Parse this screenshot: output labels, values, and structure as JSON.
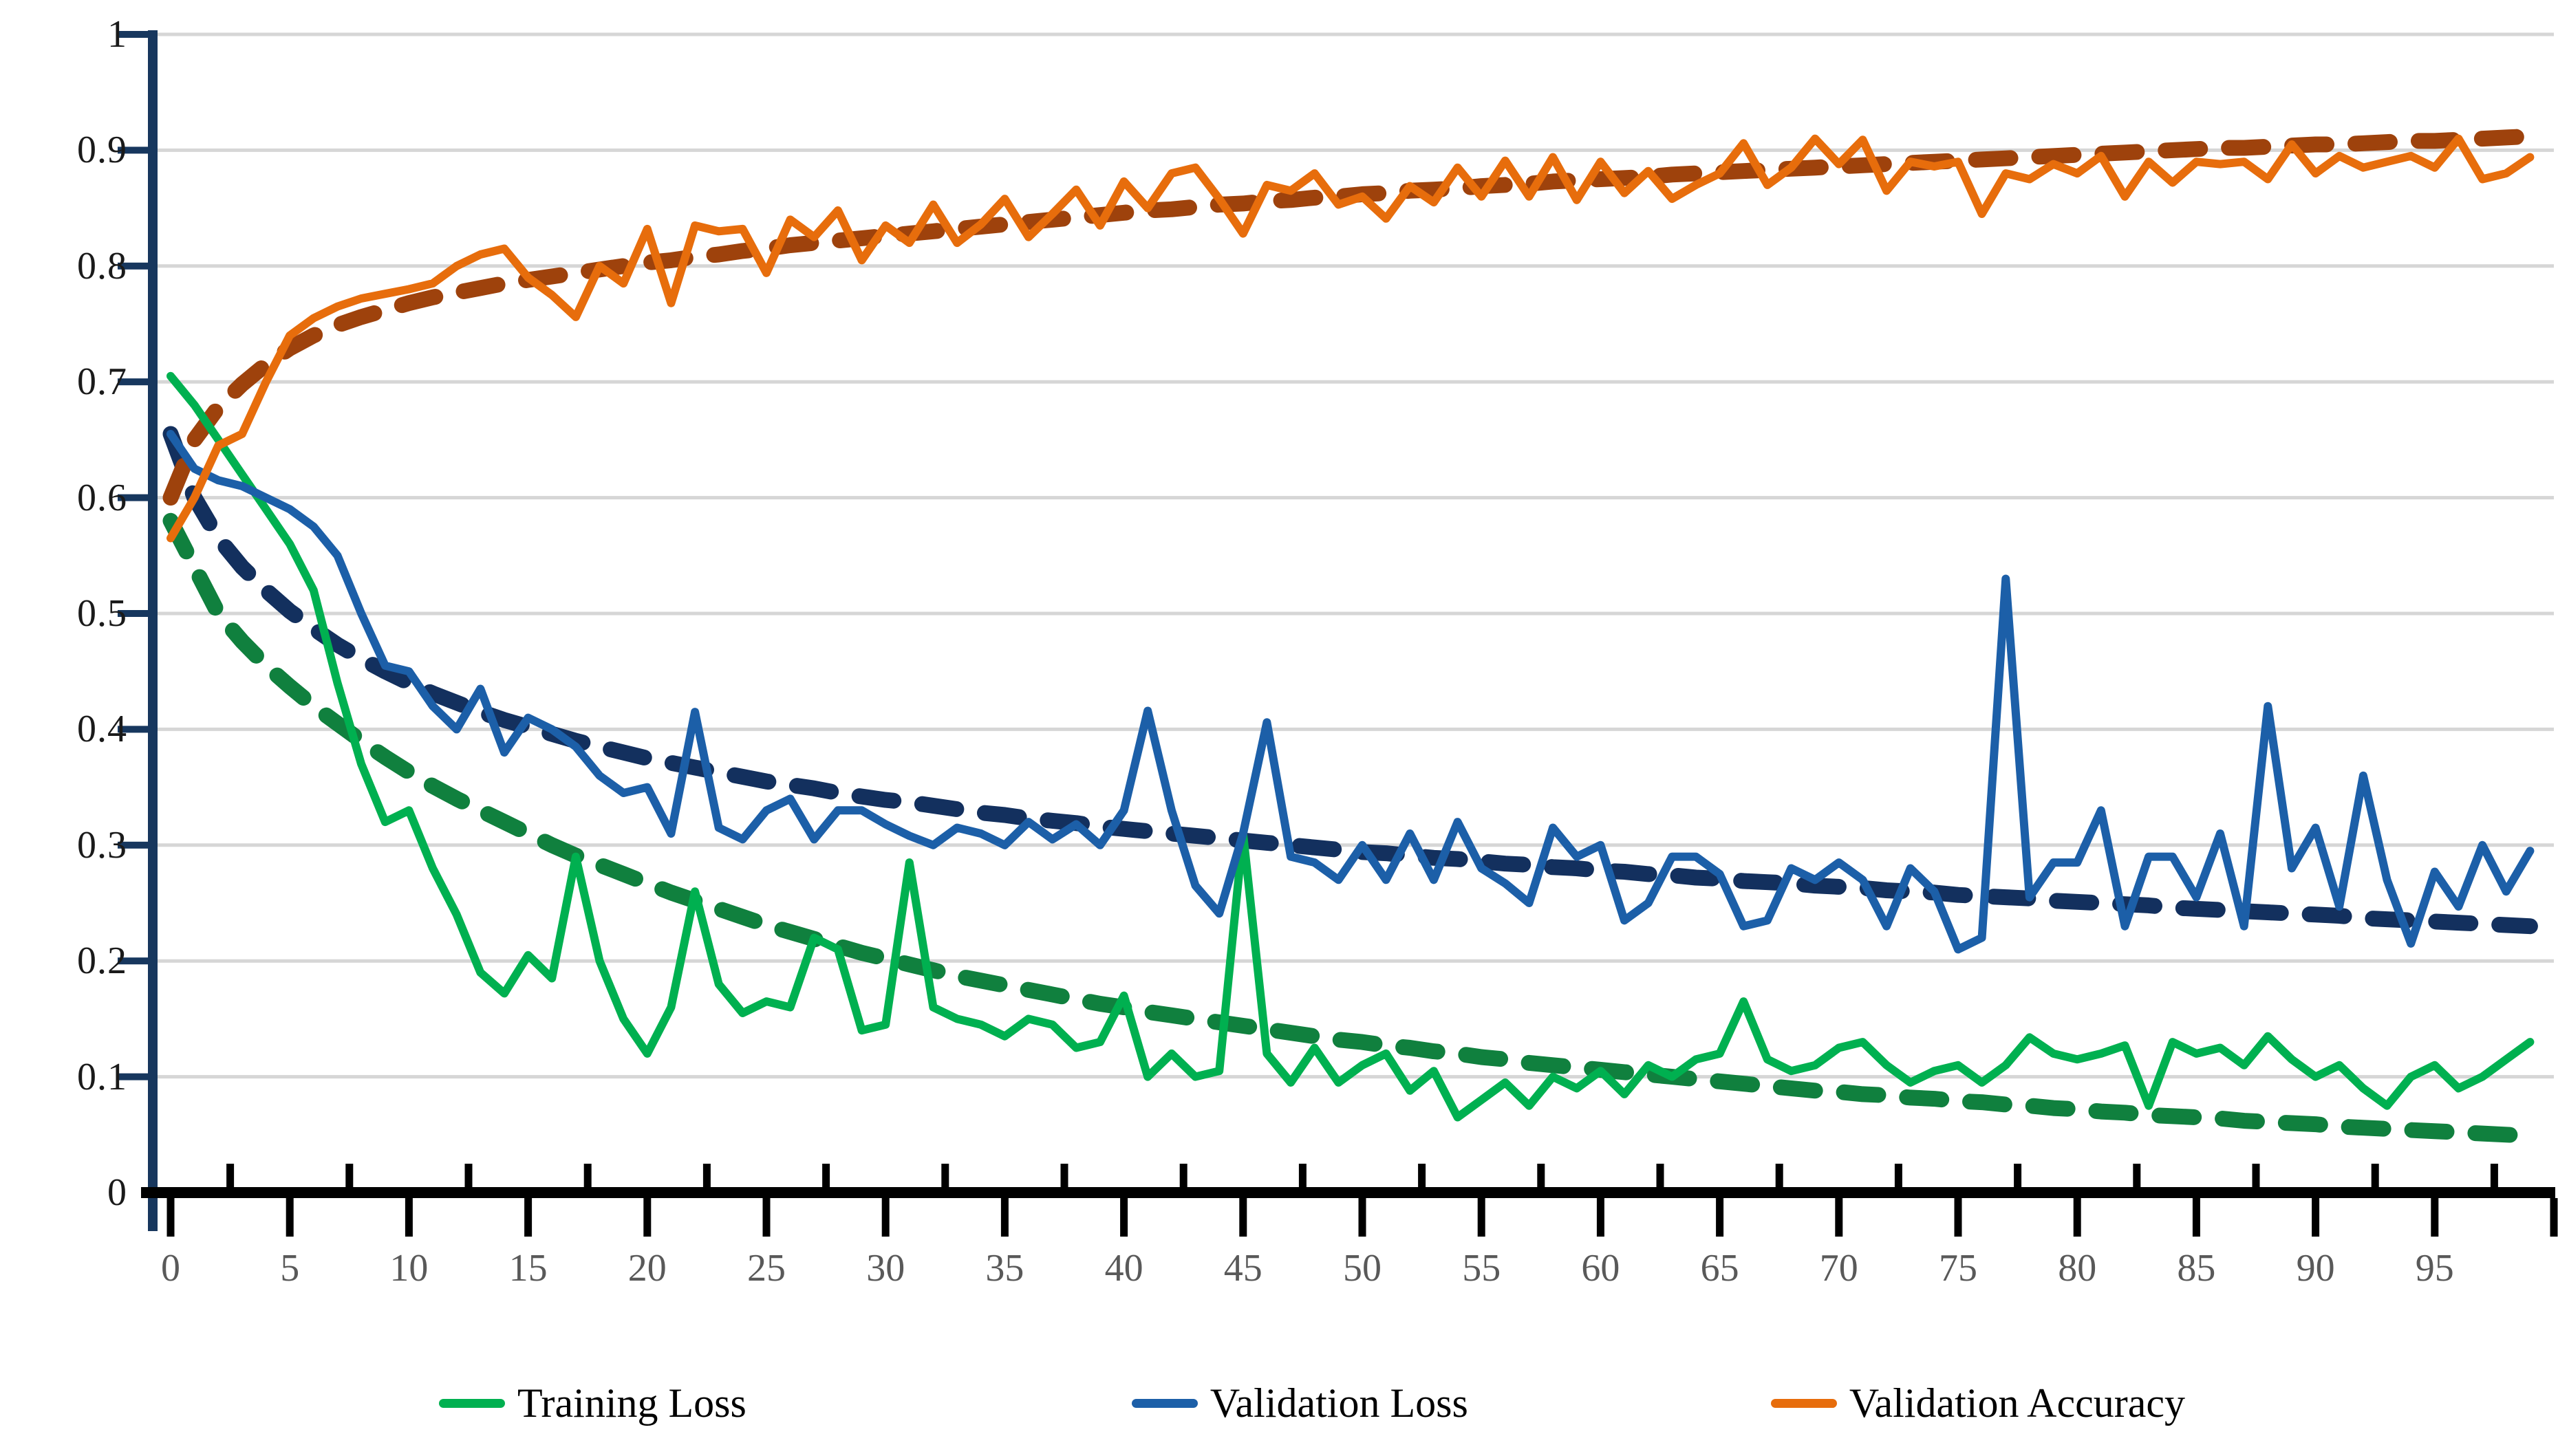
{
  "chart_data": {
    "type": "line",
    "title": "",
    "xlabel": "",
    "ylabel": "",
    "xlim": [
      0,
      100
    ],
    "ylim": [
      0,
      1
    ],
    "grid": "horizontal-only",
    "legend_position": "bottom",
    "x_ticks": [
      0,
      5,
      10,
      15,
      20,
      25,
      30,
      35,
      40,
      45,
      50,
      55,
      60,
      65,
      70,
      75,
      80,
      85,
      90,
      95
    ],
    "x_tick_labels": [
      "0",
      "5",
      "10",
      "15",
      "20",
      "25",
      "30",
      "35",
      "40",
      "45",
      "50",
      "55",
      "60",
      "65",
      "70",
      "75",
      "80",
      "85",
      "90",
      "95"
    ],
    "y_ticks": [
      1,
      0.9,
      0.8,
      0.7,
      0.6,
      0.5,
      0.4,
      0.3,
      0.2,
      0.1,
      0
    ],
    "y_tick_labels": [
      "1",
      "0.9",
      "0.8",
      "0.7",
      "0.6",
      "0.5",
      "0.4",
      "0.3",
      "0.2",
      "0.1",
      "0"
    ],
    "epochs": [
      0,
      1,
      2,
      3,
      4,
      5,
      6,
      7,
      8,
      9,
      10,
      11,
      12,
      13,
      14,
      15,
      16,
      17,
      18,
      19,
      20,
      21,
      22,
      23,
      24,
      25,
      26,
      27,
      28,
      29,
      30,
      31,
      32,
      33,
      34,
      35,
      36,
      37,
      38,
      39,
      40,
      41,
      42,
      43,
      44,
      45,
      46,
      47,
      48,
      49,
      50,
      51,
      52,
      53,
      54,
      55,
      56,
      57,
      58,
      59,
      60,
      61,
      62,
      63,
      64,
      65,
      66,
      67,
      68,
      69,
      70,
      71,
      72,
      73,
      74,
      75,
      76,
      77,
      78,
      79,
      80,
      81,
      82,
      83,
      84,
      85,
      86,
      87,
      88,
      89,
      90,
      91,
      92,
      93,
      94,
      95,
      96,
      97,
      98,
      99
    ],
    "series": [
      {
        "name": "Training Loss",
        "style": "solid",
        "color": "#00B050",
        "values": [
          0.705,
          0.68,
          0.65,
          0.62,
          0.59,
          0.56,
          0.52,
          0.44,
          0.37,
          0.32,
          0.33,
          0.28,
          0.24,
          0.19,
          0.172,
          0.205,
          0.185,
          0.29,
          0.2,
          0.15,
          0.12,
          0.16,
          0.26,
          0.18,
          0.155,
          0.165,
          0.16,
          0.22,
          0.21,
          0.14,
          0.145,
          0.285,
          0.16,
          0.15,
          0.145,
          0.135,
          0.15,
          0.145,
          0.125,
          0.13,
          0.17,
          0.1,
          0.12,
          0.1,
          0.105,
          0.31,
          0.12,
          0.095,
          0.125,
          0.095,
          0.11,
          0.12,
          0.088,
          0.105,
          0.065,
          0.08,
          0.095,
          0.075,
          0.1,
          0.09,
          0.105,
          0.085,
          0.11,
          0.1,
          0.115,
          0.12,
          0.165,
          0.115,
          0.105,
          0.11,
          0.125,
          0.13,
          0.11,
          0.095,
          0.105,
          0.11,
          0.095,
          0.11,
          0.134,
          0.12,
          0.115,
          0.12,
          0.127,
          0.075,
          0.13,
          0.12,
          0.125,
          0.11,
          0.135,
          0.115,
          0.1,
          0.11,
          0.09,
          0.075,
          0.1,
          0.11,
          0.09,
          0.1,
          0.115,
          0.13
        ]
      },
      {
        "name": "Validation Loss",
        "style": "solid",
        "color": "#1C5FA8",
        "values": [
          0.655,
          0.625,
          0.615,
          0.61,
          0.6,
          0.59,
          0.575,
          0.55,
          0.5,
          0.455,
          0.45,
          0.42,
          0.4,
          0.435,
          0.38,
          0.41,
          0.4,
          0.385,
          0.36,
          0.345,
          0.35,
          0.31,
          0.415,
          0.315,
          0.305,
          0.33,
          0.34,
          0.305,
          0.33,
          0.33,
          0.318,
          0.308,
          0.3,
          0.315,
          0.31,
          0.3,
          0.32,
          0.305,
          0.318,
          0.3,
          0.33,
          0.416,
          0.33,
          0.265,
          0.241,
          0.31,
          0.406,
          0.29,
          0.285,
          0.27,
          0.3,
          0.27,
          0.31,
          0.27,
          0.32,
          0.28,
          0.267,
          0.25,
          0.315,
          0.29,
          0.3,
          0.235,
          0.25,
          0.29,
          0.29,
          0.275,
          0.23,
          0.235,
          0.28,
          0.27,
          0.285,
          0.27,
          0.23,
          0.28,
          0.26,
          0.21,
          0.22,
          0.53,
          0.255,
          0.285,
          0.285,
          0.33,
          0.23,
          0.29,
          0.29,
          0.255,
          0.31,
          0.23,
          0.42,
          0.28,
          0.315,
          0.247,
          0.36,
          0.27,
          0.215,
          0.277,
          0.247,
          0.3,
          0.26,
          0.295
        ]
      },
      {
        "name": "Validation Accuracy",
        "style": "solid",
        "color": "#E76D0C",
        "values": [
          0.565,
          0.6,
          0.645,
          0.655,
          0.7,
          0.74,
          0.755,
          0.765,
          0.772,
          0.776,
          0.78,
          0.785,
          0.8,
          0.81,
          0.815,
          0.79,
          0.775,
          0.756,
          0.8,
          0.785,
          0.832,
          0.768,
          0.835,
          0.83,
          0.832,
          0.794,
          0.84,
          0.825,
          0.848,
          0.805,
          0.835,
          0.82,
          0.853,
          0.82,
          0.836,
          0.858,
          0.825,
          0.845,
          0.866,
          0.835,
          0.873,
          0.85,
          0.88,
          0.885,
          0.858,
          0.828,
          0.87,
          0.865,
          0.88,
          0.853,
          0.86,
          0.841,
          0.869,
          0.855,
          0.885,
          0.86,
          0.891,
          0.86,
          0.894,
          0.857,
          0.89,
          0.863,
          0.882,
          0.858,
          0.87,
          0.88,
          0.906,
          0.87,
          0.885,
          0.91,
          0.888,
          0.909,
          0.865,
          0.89,
          0.886,
          0.89,
          0.845,
          0.88,
          0.875,
          0.888,
          0.88,
          0.895,
          0.86,
          0.89,
          0.872,
          0.89,
          0.888,
          0.89,
          0.875,
          0.905,
          0.88,
          0.895,
          0.885,
          0.89,
          0.895,
          0.885,
          0.91,
          0.875,
          0.88,
          0.894
        ]
      },
      {
        "name": "Training Loss trend",
        "style": "dashed",
        "color": "#10803E",
        "values": [
          0.58,
          0.54,
          0.5,
          0.476,
          0.455,
          0.437,
          0.42,
          0.405,
          0.39,
          0.376,
          0.363,
          0.351,
          0.34,
          0.33,
          0.32,
          0.31,
          0.3,
          0.291,
          0.283,
          0.275,
          0.267,
          0.259,
          0.252,
          0.245,
          0.238,
          0.231,
          0.225,
          0.219,
          0.213,
          0.207,
          0.202,
          0.197,
          0.192,
          0.187,
          0.183,
          0.179,
          0.175,
          0.171,
          0.167,
          0.163,
          0.16,
          0.156,
          0.153,
          0.15,
          0.147,
          0.144,
          0.141,
          0.138,
          0.135,
          0.132,
          0.13,
          0.127,
          0.125,
          0.122,
          0.12,
          0.117,
          0.115,
          0.112,
          0.11,
          0.108,
          0.106,
          0.104,
          0.102,
          0.1,
          0.098,
          0.096,
          0.094,
          0.092,
          0.09,
          0.088,
          0.087,
          0.085,
          0.084,
          0.082,
          0.081,
          0.079,
          0.078,
          0.076,
          0.075,
          0.073,
          0.072,
          0.07,
          0.069,
          0.067,
          0.066,
          0.065,
          0.064,
          0.062,
          0.061,
          0.06,
          0.059,
          0.057,
          0.056,
          0.055,
          0.054,
          0.053,
          0.052,
          0.051,
          0.05,
          0.049
        ]
      },
      {
        "name": "Validation Loss trend",
        "style": "dashed",
        "color": "#13305E",
        "values": [
          0.655,
          0.6,
          0.565,
          0.54,
          0.52,
          0.502,
          0.487,
          0.473,
          0.461,
          0.45,
          0.44,
          0.431,
          0.423,
          0.415,
          0.408,
          0.402,
          0.396,
          0.39,
          0.385,
          0.38,
          0.375,
          0.371,
          0.367,
          0.363,
          0.359,
          0.355,
          0.352,
          0.349,
          0.345,
          0.342,
          0.339,
          0.337,
          0.334,
          0.331,
          0.328,
          0.326,
          0.323,
          0.321,
          0.319,
          0.316,
          0.314,
          0.312,
          0.31,
          0.308,
          0.306,
          0.304,
          0.302,
          0.3,
          0.298,
          0.296,
          0.294,
          0.293,
          0.291,
          0.289,
          0.288,
          0.286,
          0.284,
          0.283,
          0.281,
          0.28,
          0.278,
          0.277,
          0.275,
          0.274,
          0.272,
          0.271,
          0.269,
          0.268,
          0.267,
          0.265,
          0.264,
          0.263,
          0.261,
          0.26,
          0.259,
          0.257,
          0.256,
          0.255,
          0.254,
          0.252,
          0.251,
          0.25,
          0.249,
          0.248,
          0.246,
          0.245,
          0.244,
          0.243,
          0.242,
          0.241,
          0.24,
          0.239,
          0.237,
          0.236,
          0.235,
          0.234,
          0.233,
          0.232,
          0.231,
          0.23
        ]
      },
      {
        "name": "Validation Accuracy trend",
        "style": "dashed",
        "color": "#9E420C",
        "values": [
          0.6,
          0.65,
          0.678,
          0.698,
          0.715,
          0.729,
          0.74,
          0.749,
          0.756,
          0.762,
          0.768,
          0.773,
          0.777,
          0.781,
          0.785,
          0.788,
          0.791,
          0.794,
          0.797,
          0.8,
          0.803,
          0.805,
          0.808,
          0.81,
          0.813,
          0.815,
          0.818,
          0.82,
          0.822,
          0.824,
          0.826,
          0.828,
          0.83,
          0.832,
          0.834,
          0.836,
          0.838,
          0.84,
          0.842,
          0.844,
          0.846,
          0.848,
          0.849,
          0.851,
          0.853,
          0.854,
          0.856,
          0.857,
          0.859,
          0.86,
          0.862,
          0.863,
          0.865,
          0.866,
          0.867,
          0.869,
          0.87,
          0.871,
          0.873,
          0.874,
          0.875,
          0.876,
          0.877,
          0.879,
          0.88,
          0.881,
          0.882,
          0.883,
          0.884,
          0.885,
          0.886,
          0.887,
          0.888,
          0.889,
          0.89,
          0.891,
          0.892,
          0.893,
          0.894,
          0.895,
          0.896,
          0.897,
          0.898,
          0.899,
          0.9,
          0.901,
          0.902,
          0.902,
          0.903,
          0.904,
          0.905,
          0.905,
          0.906,
          0.907,
          0.908,
          0.908,
          0.909,
          0.91,
          0.911,
          0.912
        ]
      }
    ],
    "legend": [
      {
        "label": "Training Loss",
        "color": "#00B050"
      },
      {
        "label": "Validation Loss",
        "color": "#1C5FA8"
      },
      {
        "label": "Validation Accuracy",
        "color": "#E76D0C"
      }
    ]
  },
  "colors": {
    "background": "#ffffff",
    "gridline": "#D6D6D6",
    "y_axis": "#17375E",
    "x_axis": "#000000",
    "y_tick_label": "#1a1a1a",
    "x_tick_label": "#595959",
    "legend_text": "#000000"
  }
}
